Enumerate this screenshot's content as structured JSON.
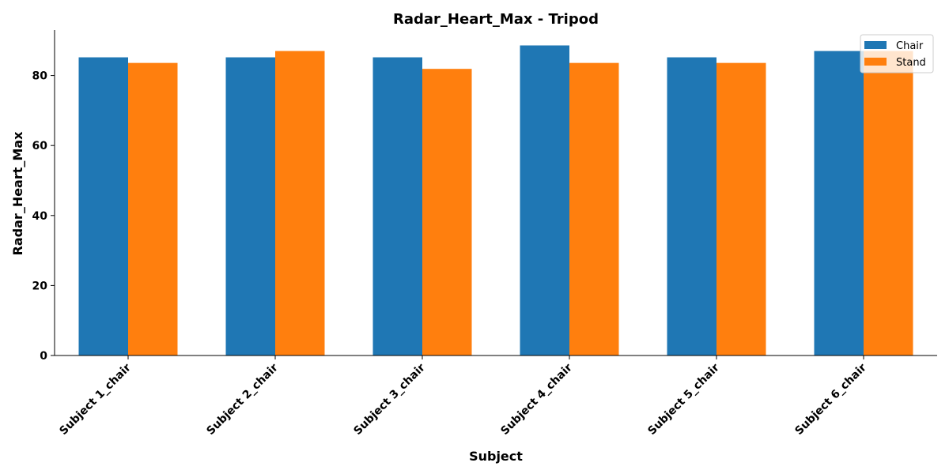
{
  "chart_data": {
    "type": "bar",
    "title": "Radar_Heart_Max - Tripod",
    "xlabel": "Subject",
    "ylabel": "Radar_Heart_Max",
    "categories": [
      "Subject 1_chair",
      "Subject 2_chair",
      "Subject 3_chair",
      "Subject 4_chair",
      "Subject 5_chair",
      "Subject 6_chair"
    ],
    "series": [
      {
        "name": "Chair",
        "color": "#1f77b4",
        "values": [
          85.2,
          85.2,
          85.2,
          88.6,
          85.2,
          87.0
        ]
      },
      {
        "name": "Stand",
        "color": "#ff7f0e",
        "values": [
          83.6,
          87.0,
          81.9,
          83.6,
          83.6,
          87.0
        ]
      }
    ],
    "ylim": [
      0,
      93
    ],
    "yticks": [
      0,
      20,
      40,
      60,
      80
    ],
    "grid": false,
    "legend_position": "top-right"
  }
}
